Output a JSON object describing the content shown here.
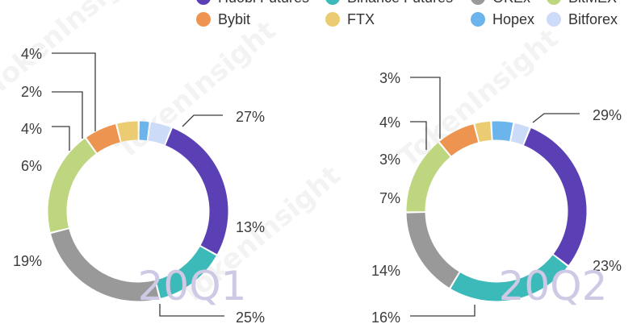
{
  "colors": {
    "Huobi Futures": "#5b3fb5",
    "Binance Futures": "#3cbab9",
    "OKEx": "#999999",
    "BitMEX": "#bdd67f",
    "Bybit": "#ec9450",
    "FTX": "#eccc72",
    "Hopex": "#6cb4ec",
    "Bitforex": "#ccdbf7"
  },
  "legend": [
    {
      "name": "Huobi Futures"
    },
    {
      "name": "Binance Futures"
    },
    {
      "name": "OKEx"
    },
    {
      "name": "BitMEX"
    },
    {
      "name": "Bybit"
    },
    {
      "name": "FTX"
    },
    {
      "name": "Hopex"
    },
    {
      "name": "Bitforex"
    }
  ],
  "watermark": "TokenInsight",
  "chart_data": [
    {
      "type": "pie",
      "style": "donut",
      "title": "20Q1",
      "slices": [
        {
          "name": "Huobi Futures",
          "value": 27,
          "label": "27%"
        },
        {
          "name": "Binance Futures",
          "value": 13,
          "label": "13%"
        },
        {
          "name": "OKEx",
          "value": 25,
          "label": "25%"
        },
        {
          "name": "BitMEX",
          "value": 19,
          "label": "19%"
        },
        {
          "name": "Bybit",
          "value": 6,
          "label": "6%"
        },
        {
          "name": "FTX",
          "value": 4,
          "label": "4%"
        },
        {
          "name": "Hopex",
          "value": 2,
          "label": "2%"
        },
        {
          "name": "Bitforex",
          "value": 4,
          "label": "4%"
        }
      ]
    },
    {
      "type": "pie",
      "style": "donut",
      "title": "20Q2",
      "slices": [
        {
          "name": "Huobi Futures",
          "value": 29,
          "label": "29%"
        },
        {
          "name": "Binance Futures",
          "value": 23,
          "label": "23%"
        },
        {
          "name": "OKEx",
          "value": 16,
          "label": "16%"
        },
        {
          "name": "BitMEX",
          "value": 14,
          "label": "14%"
        },
        {
          "name": "Bybit",
          "value": 7,
          "label": "7%"
        },
        {
          "name": "FTX",
          "value": 3,
          "label": "3%"
        },
        {
          "name": "Hopex",
          "value": 4,
          "label": "4%"
        },
        {
          "name": "Bitforex",
          "value": 3,
          "label": "3%"
        }
      ]
    }
  ]
}
